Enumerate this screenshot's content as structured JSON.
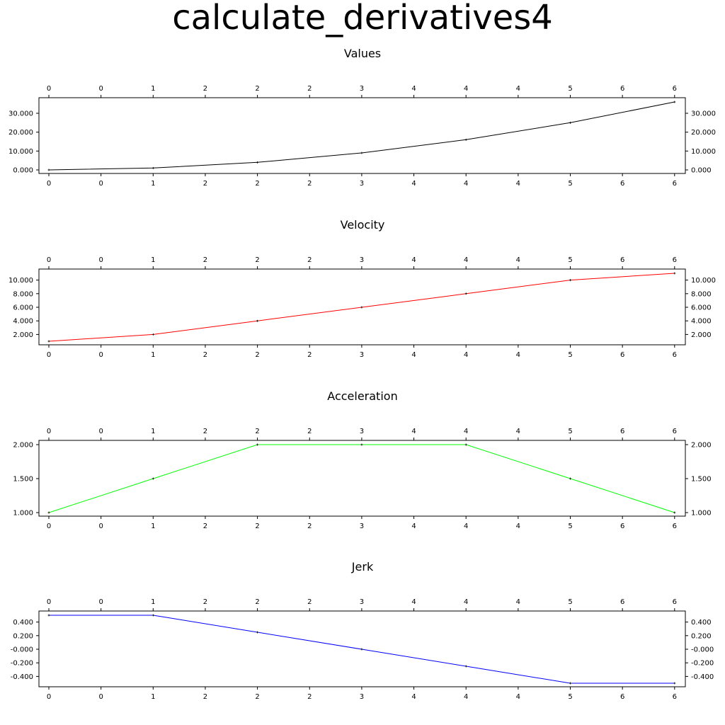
{
  "figure_title": "calculate_derivatives4",
  "chart_data": [
    {
      "type": "line",
      "title": "Values",
      "color": "#000000",
      "x": [
        0,
        1,
        2,
        3,
        4,
        5,
        6
      ],
      "values": [
        0,
        1,
        4,
        9,
        16,
        25,
        36
      ],
      "ylim": [
        0,
        36
      ],
      "x_tick_labels": [
        "0",
        "0",
        "1",
        "2",
        "2",
        "2",
        "3",
        "4",
        "4",
        "4",
        "5",
        "6",
        "6"
      ],
      "y_ticks": [
        {
          "value": 0,
          "label": "0.000"
        },
        {
          "value": 10,
          "label": "10.000"
        },
        {
          "value": 20,
          "label": "20.000"
        },
        {
          "value": 30,
          "label": "30.000"
        }
      ],
      "grid": false,
      "markers": "+"
    },
    {
      "type": "line",
      "title": "Velocity",
      "color": "#ff0000",
      "x": [
        0,
        1,
        2,
        3,
        4,
        5,
        6
      ],
      "values": [
        1,
        2,
        4,
        6,
        8,
        10,
        11
      ],
      "ylim": [
        1,
        11
      ],
      "x_tick_labels": [
        "0",
        "0",
        "1",
        "2",
        "2",
        "2",
        "3",
        "4",
        "4",
        "4",
        "5",
        "6",
        "6"
      ],
      "y_ticks": [
        {
          "value": 2,
          "label": "2.000"
        },
        {
          "value": 4,
          "label": "4.000"
        },
        {
          "value": 6,
          "label": "6.000"
        },
        {
          "value": 8,
          "label": "8.000"
        },
        {
          "value": 10,
          "label": "10.000"
        }
      ],
      "grid": false,
      "markers": "+"
    },
    {
      "type": "line",
      "title": "Acceleration",
      "color": "#00ff00",
      "x": [
        0,
        1,
        2,
        3,
        4,
        5,
        6
      ],
      "values": [
        1,
        1.5,
        2,
        2,
        2,
        1.5,
        1
      ],
      "ylim": [
        1,
        2
      ],
      "x_tick_labels": [
        "0",
        "0",
        "1",
        "2",
        "2",
        "2",
        "3",
        "4",
        "4",
        "4",
        "5",
        "6",
        "6"
      ],
      "y_ticks": [
        {
          "value": 1,
          "label": "1.000"
        },
        {
          "value": 1.5,
          "label": "1.500"
        },
        {
          "value": 2,
          "label": "2.000"
        }
      ],
      "grid": false,
      "markers": "+"
    },
    {
      "type": "line",
      "title": "Jerk",
      "color": "#0000ff",
      "x": [
        0,
        1,
        2,
        3,
        4,
        5,
        6
      ],
      "values": [
        0.5,
        0.5,
        0.25,
        0,
        -0.25,
        -0.5,
        -0.5
      ],
      "ylim": [
        -0.5,
        0.5
      ],
      "x_tick_labels": [
        "0",
        "0",
        "1",
        "2",
        "2",
        "2",
        "3",
        "4",
        "4",
        "4",
        "5",
        "6",
        "6"
      ],
      "y_ticks": [
        {
          "value": -0.4,
          "label": "-0.400"
        },
        {
          "value": -0.2,
          "label": "-0.200"
        },
        {
          "value": 0,
          "label": "-0.000"
        },
        {
          "value": 0.2,
          "label": "0.200"
        },
        {
          "value": 0.4,
          "label": "0.400"
        }
      ],
      "grid": false,
      "markers": "+"
    }
  ]
}
